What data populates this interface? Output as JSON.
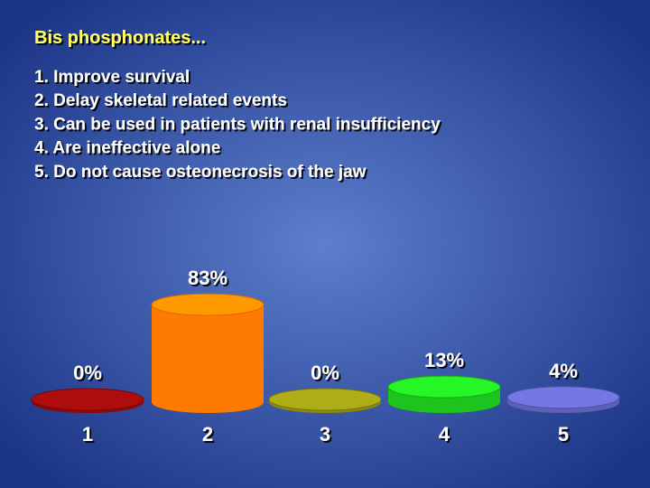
{
  "chart_data": {
    "type": "bar",
    "title": "Bis phosphonates...",
    "options": [
      "1. Improve survival",
      "2. Delay skeletal related events",
      "3. Can be used in patients with renal insufficiency",
      "4. Are ineffective alone",
      "5. Do not cause osteonecrosis of the jaw"
    ],
    "categories": [
      "1",
      "2",
      "3",
      "4",
      "5"
    ],
    "values": [
      0,
      83,
      0,
      13,
      4
    ],
    "value_labels": [
      "0%",
      "83%",
      "0%",
      "13%",
      "4%"
    ],
    "colors": [
      "#8b0a0a",
      "#ff7a00",
      "#8a8a12",
      "#1ec41e",
      "#5c60b8"
    ]
  }
}
